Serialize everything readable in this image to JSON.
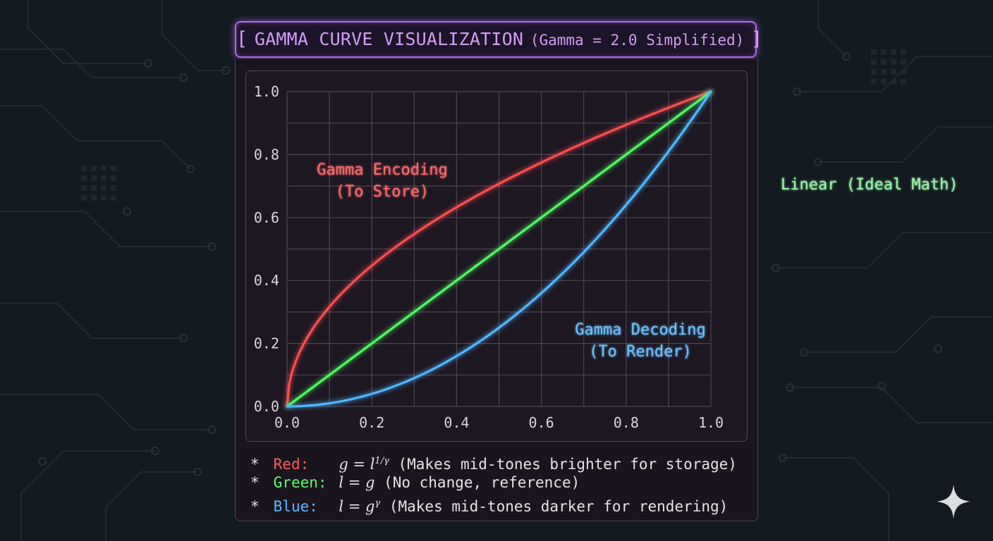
{
  "title": {
    "open_bracket": "[",
    "main": "GAMMA CURVE VISUALIZATION",
    "sub": "(Gamma = 2.0 Simplified)",
    "close_bracket": "]"
  },
  "chart_data": {
    "type": "line",
    "title": "GAMMA CURVE VISUALIZATION (Gamma = 2.0 Simplified)",
    "xlim": [
      0,
      1
    ],
    "ylim": [
      0,
      1
    ],
    "x_ticks": [
      "0.0",
      "0.2",
      "0.4",
      "0.6",
      "0.8",
      "1.0"
    ],
    "y_ticks": [
      "0.0",
      "0.2",
      "0.4",
      "0.6",
      "0.8",
      "1.0"
    ],
    "grid": true,
    "gamma": 2.0,
    "x": [
      0,
      0.05,
      0.1,
      0.15,
      0.2,
      0.25,
      0.3,
      0.35,
      0.4,
      0.45,
      0.5,
      0.55,
      0.6,
      0.65,
      0.7,
      0.75,
      0.8,
      0.85,
      0.9,
      0.95,
      1.0
    ],
    "series": [
      {
        "name": "Gamma Encoding (To Store)",
        "color": "#ff4d4d",
        "values": [
          0,
          0.224,
          0.316,
          0.387,
          0.447,
          0.5,
          0.548,
          0.592,
          0.632,
          0.671,
          0.707,
          0.742,
          0.775,
          0.806,
          0.837,
          0.866,
          0.894,
          0.922,
          0.949,
          0.975,
          1.0
        ]
      },
      {
        "name": "Linear (Ideal Math)",
        "color": "#4dff5e",
        "values": [
          0,
          0.05,
          0.1,
          0.15,
          0.2,
          0.25,
          0.3,
          0.35,
          0.4,
          0.45,
          0.5,
          0.55,
          0.6,
          0.65,
          0.7,
          0.75,
          0.8,
          0.85,
          0.9,
          0.95,
          1.0
        ]
      },
      {
        "name": "Gamma Decoding (To Render)",
        "color": "#4db8ff",
        "values": [
          0,
          0.0025,
          0.01,
          0.0225,
          0.04,
          0.0625,
          0.09,
          0.1225,
          0.16,
          0.2025,
          0.25,
          0.3025,
          0.36,
          0.4225,
          0.49,
          0.5625,
          0.64,
          0.7225,
          0.81,
          0.9025,
          1.0
        ]
      }
    ],
    "annotations": {
      "red": [
        "Gamma Encoding",
        "(To Store)"
      ],
      "blue": [
        "Gamma Decoding",
        "(To Render)"
      ],
      "green": "Linear (Ideal Math)"
    }
  },
  "legend": [
    {
      "star": "*",
      "label": "Red:",
      "color": "#ff5a5a",
      "f_lhs": "g = l",
      "f_sup": "1/γ",
      "desc": "(Makes mid-tones brighter for storage)"
    },
    {
      "star": "*",
      "label": "Green:",
      "color": "#5aff6a",
      "f_lhs": "l = g",
      "f_sup": "",
      "desc": "(No change, reference)"
    },
    {
      "star": "*",
      "label": "Blue:",
      "color": "#5ab8ff",
      "f_lhs": "l = g",
      "f_sup": "γ",
      "desc": "(Makes mid-tones darker for rendering)"
    }
  ],
  "colors": {
    "background": "#121a20",
    "title_border": "#b067e8",
    "grid": "#4a4652",
    "tick_text": "#d8d8d8"
  }
}
